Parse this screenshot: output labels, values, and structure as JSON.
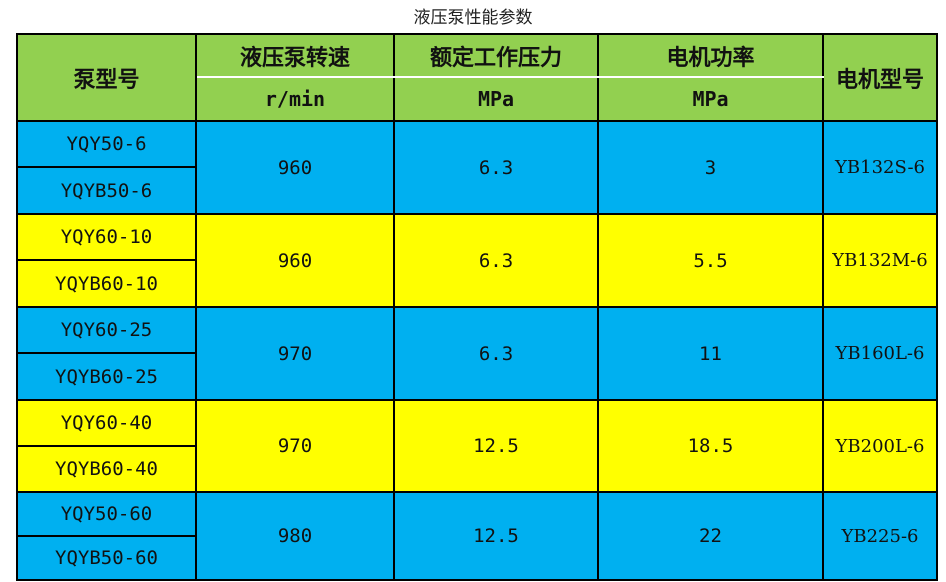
{
  "title": "液压泵性能参数",
  "colors": {
    "header": "#92D050",
    "blue": "#00B0F0",
    "yellow": "#FFFF00"
  },
  "headers": {
    "model": "泵型号",
    "speed": "液压泵转速",
    "speed_unit": "r/min",
    "pressure": "额定工作压力",
    "pressure_unit": "MPa",
    "power": "电机功率",
    "power_unit": "MPa",
    "motor": "电机型号"
  },
  "rows": [
    {
      "models": [
        "YQY50-6",
        "YQYB50-6"
      ],
      "speed": "960",
      "pressure": "6.3",
      "power": "3",
      "motor": "YB132S-6",
      "color": "blue"
    },
    {
      "models": [
        "YQY60-10",
        "YQYB60-10"
      ],
      "speed": "960",
      "pressure": "6.3",
      "power": "5.5",
      "motor": "YB132M-6",
      "color": "yellow"
    },
    {
      "models": [
        "YQY60-25",
        "YQYB60-25"
      ],
      "speed": "970",
      "pressure": "6.3",
      "power": "11",
      "motor": "YB160L-6",
      "color": "blue"
    },
    {
      "models": [
        "YQY60-40",
        "YQYB60-40"
      ],
      "speed": "970",
      "pressure": "12.5",
      "power": "18.5",
      "motor": "YB200L-6",
      "color": "yellow"
    },
    {
      "models": [
        "YQY50-60",
        "YQYB50-60"
      ],
      "speed": "980",
      "pressure": "12.5",
      "power": "22",
      "motor": "YB225-6",
      "color": "blue"
    }
  ]
}
